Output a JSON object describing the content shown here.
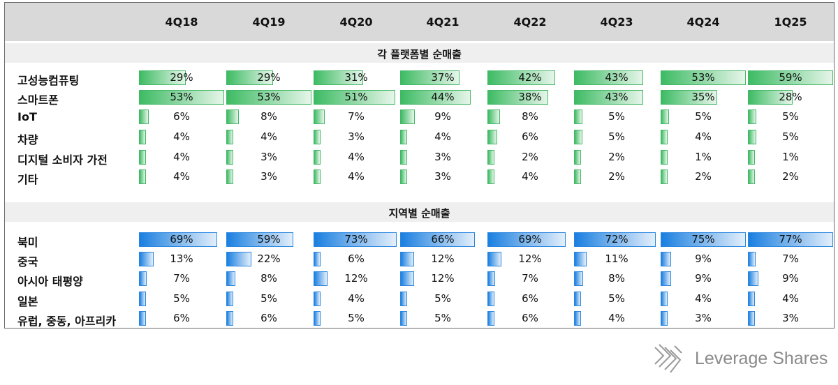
{
  "quarters": [
    "4Q18",
    "4Q19",
    "4Q20",
    "4Q21",
    "4Q22",
    "4Q23",
    "4Q24",
    "1Q25"
  ],
  "sections": {
    "platform": {
      "title": "각 플랫폼별 순매출",
      "rows": [
        {
          "label": "고성능컴퓨팅",
          "values": [
            "29%",
            "29%",
            "31%",
            "37%",
            "42%",
            "43%",
            "53%",
            "59%"
          ]
        },
        {
          "label": "스마트폰",
          "values": [
            "53%",
            "53%",
            "51%",
            "44%",
            "38%",
            "43%",
            "35%",
            "28%"
          ]
        },
        {
          "label": "IoT",
          "values": [
            "6%",
            "8%",
            "7%",
            "9%",
            "8%",
            "5%",
            "5%",
            "5%"
          ]
        },
        {
          "label": "차량",
          "values": [
            "4%",
            "4%",
            "3%",
            "4%",
            "6%",
            "5%",
            "4%",
            "5%"
          ]
        },
        {
          "label": "디지털 소비자 가전",
          "values": [
            "4%",
            "3%",
            "4%",
            "3%",
            "2%",
            "2%",
            "1%",
            "1%"
          ]
        },
        {
          "label": "기타",
          "values": [
            "4%",
            "3%",
            "4%",
            "3%",
            "4%",
            "2%",
            "2%",
            "2%"
          ]
        }
      ]
    },
    "region": {
      "title": "지역별 순매출",
      "rows": [
        {
          "label": "북미",
          "values": [
            "69%",
            "59%",
            "73%",
            "66%",
            "69%",
            "72%",
            "75%",
            "77%"
          ]
        },
        {
          "label": "중국",
          "values": [
            "13%",
            "22%",
            "6%",
            "12%",
            "12%",
            "11%",
            "9%",
            "7%"
          ]
        },
        {
          "label": "아시아 태평양",
          "values": [
            "7%",
            "8%",
            "12%",
            "12%",
            "7%",
            "8%",
            "9%",
            "9%"
          ]
        },
        {
          "label": "일본",
          "values": [
            "5%",
            "5%",
            "4%",
            "5%",
            "6%",
            "5%",
            "4%",
            "4%"
          ]
        },
        {
          "label": "유럽, 중동, 아프리카",
          "values": [
            "6%",
            "6%",
            "5%",
            "5%",
            "6%",
            "4%",
            "3%",
            "3%"
          ]
        }
      ]
    }
  },
  "colors": {
    "platform_bar": "#3dbb63",
    "region_bar": "#1a7fe0",
    "header_band": "#d9d9d9"
  },
  "logo": {
    "icon": "leverage-shares-logo-icon",
    "text": "Leverage Shares"
  },
  "chart_data": [
    {
      "type": "table",
      "title": "각 플랫폼별 순매출",
      "categories": [
        "4Q18",
        "4Q19",
        "4Q20",
        "4Q21",
        "4Q22",
        "4Q23",
        "4Q24",
        "1Q25"
      ],
      "series": [
        {
          "name": "고성능컴퓨팅",
          "values": [
            29,
            29,
            31,
            37,
            42,
            43,
            53,
            59
          ]
        },
        {
          "name": "스마트폰",
          "values": [
            53,
            53,
            51,
            44,
            38,
            43,
            35,
            28
          ]
        },
        {
          "name": "IoT",
          "values": [
            6,
            8,
            7,
            9,
            8,
            5,
            5,
            5
          ]
        },
        {
          "name": "차량",
          "values": [
            4,
            4,
            3,
            4,
            6,
            5,
            4,
            5
          ]
        },
        {
          "name": "디지털 소비자 가전",
          "values": [
            4,
            3,
            4,
            3,
            2,
            2,
            1,
            1
          ]
        },
        {
          "name": "기타",
          "values": [
            4,
            3,
            4,
            3,
            4,
            2,
            2,
            2
          ]
        }
      ]
    },
    {
      "type": "table",
      "title": "지역별 순매출",
      "categories": [
        "4Q18",
        "4Q19",
        "4Q20",
        "4Q21",
        "4Q22",
        "4Q23",
        "4Q24",
        "1Q25"
      ],
      "series": [
        {
          "name": "북미",
          "values": [
            69,
            59,
            73,
            66,
            69,
            72,
            75,
            77
          ]
        },
        {
          "name": "중국",
          "values": [
            13,
            22,
            6,
            12,
            12,
            11,
            9,
            7
          ]
        },
        {
          "name": "아시아 태평양",
          "values": [
            7,
            8,
            12,
            12,
            7,
            8,
            9,
            9
          ]
        },
        {
          "name": "일본",
          "values": [
            5,
            5,
            4,
            5,
            6,
            5,
            4,
            4
          ]
        },
        {
          "name": "유럽, 중동, 아프리카",
          "values": [
            6,
            6,
            5,
            5,
            6,
            4,
            3,
            3
          ]
        }
      ]
    }
  ]
}
